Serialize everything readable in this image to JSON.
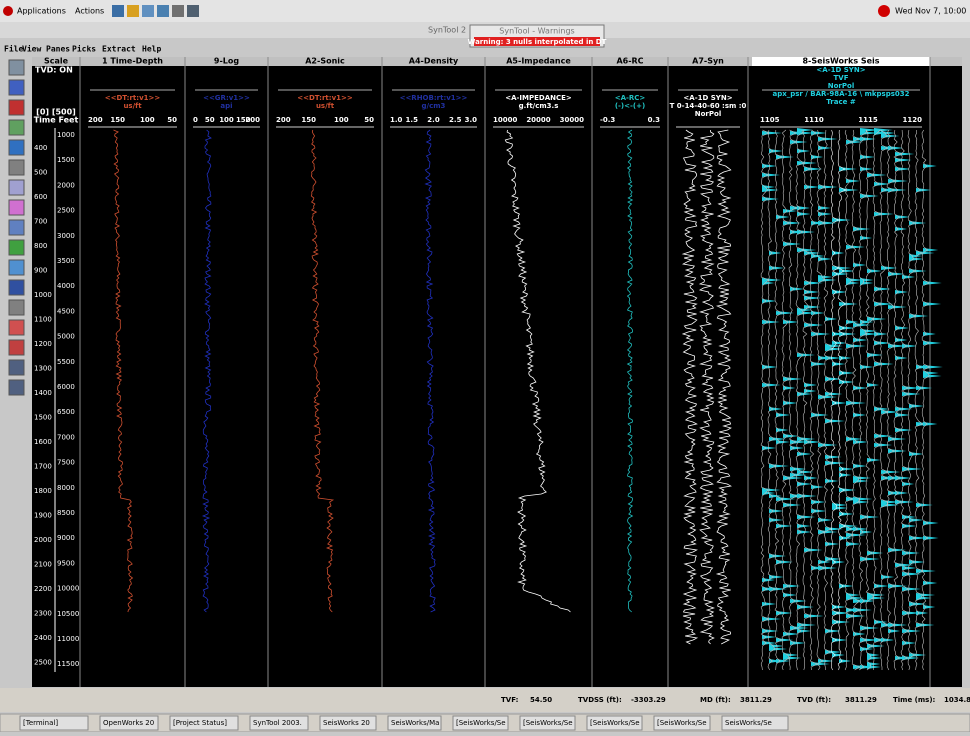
{
  "top_bar": {
    "menu": [
      "Applications",
      "Actions"
    ],
    "clock": "Wed Nov 7, 10:00"
  },
  "window": {
    "title": "SynTool 2",
    "warning_title": "SynTool - Warnings",
    "warning": "Warning: 3 nulls interpolated in DT"
  },
  "menu": [
    "File",
    "View",
    "Panes",
    "Picks",
    "Extract",
    "Help"
  ],
  "scale": {
    "title": "Scale",
    "tvd": "TVD: ON",
    "range": "[0] [500]",
    "units": "Time Feet",
    "time_ticks": [
      "400",
      "500",
      "600",
      "700",
      "800",
      "900",
      "1000",
      "1100",
      "1200",
      "1300",
      "1400",
      "1500",
      "1600",
      "1700",
      "1800",
      "1900",
      "2000",
      "2100",
      "2200",
      "2300",
      "2400",
      "2500"
    ],
    "feet_ticks": [
      "1000",
      "1500",
      "2000",
      "2500",
      "3000",
      "3500",
      "4000",
      "4500",
      "5000",
      "5500",
      "6000",
      "6500",
      "7000",
      "7500",
      "8000",
      "8500",
      "9000",
      "9500",
      "10000",
      "10500",
      "11000",
      "11500"
    ]
  },
  "tracks": [
    {
      "title": "1 Time-Depth",
      "lines": [
        "<<DT:rt:v1>>",
        "us/ft"
      ],
      "scale": [
        "200",
        "150",
        "100",
        "50"
      ]
    },
    {
      "title": "9-Log",
      "lines": [
        "<<GR:v1>>",
        "api"
      ],
      "scale": [
        "0",
        "50",
        "100",
        "150",
        "200"
      ]
    },
    {
      "title": "A2-Sonic",
      "lines": [
        "<<DT:rt:v1>>",
        "us/ft"
      ],
      "scale": [
        "200",
        "150",
        "100",
        "50"
      ]
    },
    {
      "title": "A4-Density",
      "lines": [
        "<<RHOB:rt:v1>>",
        "g/cm3"
      ],
      "scale": [
        "1.0",
        "1.5",
        "2.0",
        "2.5",
        "3.0"
      ]
    },
    {
      "title": "A5-Impedance",
      "lines": [
        "<A-IMPEDANCE>",
        "g.ft/cm3.s"
      ],
      "scale": [
        "10000",
        "20000",
        "30000"
      ]
    },
    {
      "title": "A6-RC",
      "lines": [
        "<A-RC>",
        "(-)<-(+)"
      ],
      "scale": [
        "-0.3",
        "0.3"
      ]
    },
    {
      "title": "A7-Syn",
      "lines": [
        "<A-1D SYN>",
        "T 0-14-40-60 :sm :0",
        "NorPol"
      ],
      "scale": []
    },
    {
      "title": "8-SeisWorks Seis",
      "lines": [
        "<A-1D SYN>",
        "TVF",
        "NorPol",
        "apx_psr / BAR-98A-16 \\ mkpsps032",
        "Trace #"
      ],
      "scale": [
        "1105",
        "1110",
        "1115",
        "1120"
      ]
    }
  ],
  "status": [
    {
      "label": "TVF:",
      "value": "54.50"
    },
    {
      "label": "TVDSS (ft):",
      "value": "-3303.29"
    },
    {
      "label": "MD (ft):",
      "value": "3811.29"
    },
    {
      "label": "TVD (ft):",
      "value": "3811.29"
    },
    {
      "label": "Time (ms):",
      "value": "1034.85"
    }
  ],
  "taskbar": [
    "[Terminal]",
    "OpenWorks 20",
    "[Project Status]",
    "SynTool 2003.",
    "SeisWorks 20",
    "SeisWorks/Ma",
    "[SeisWorks/Se",
    "[SeisWorks/Se",
    "[SeisWorks/Se",
    "[SeisWorks/Se",
    "SeisWorks/Se"
  ]
}
